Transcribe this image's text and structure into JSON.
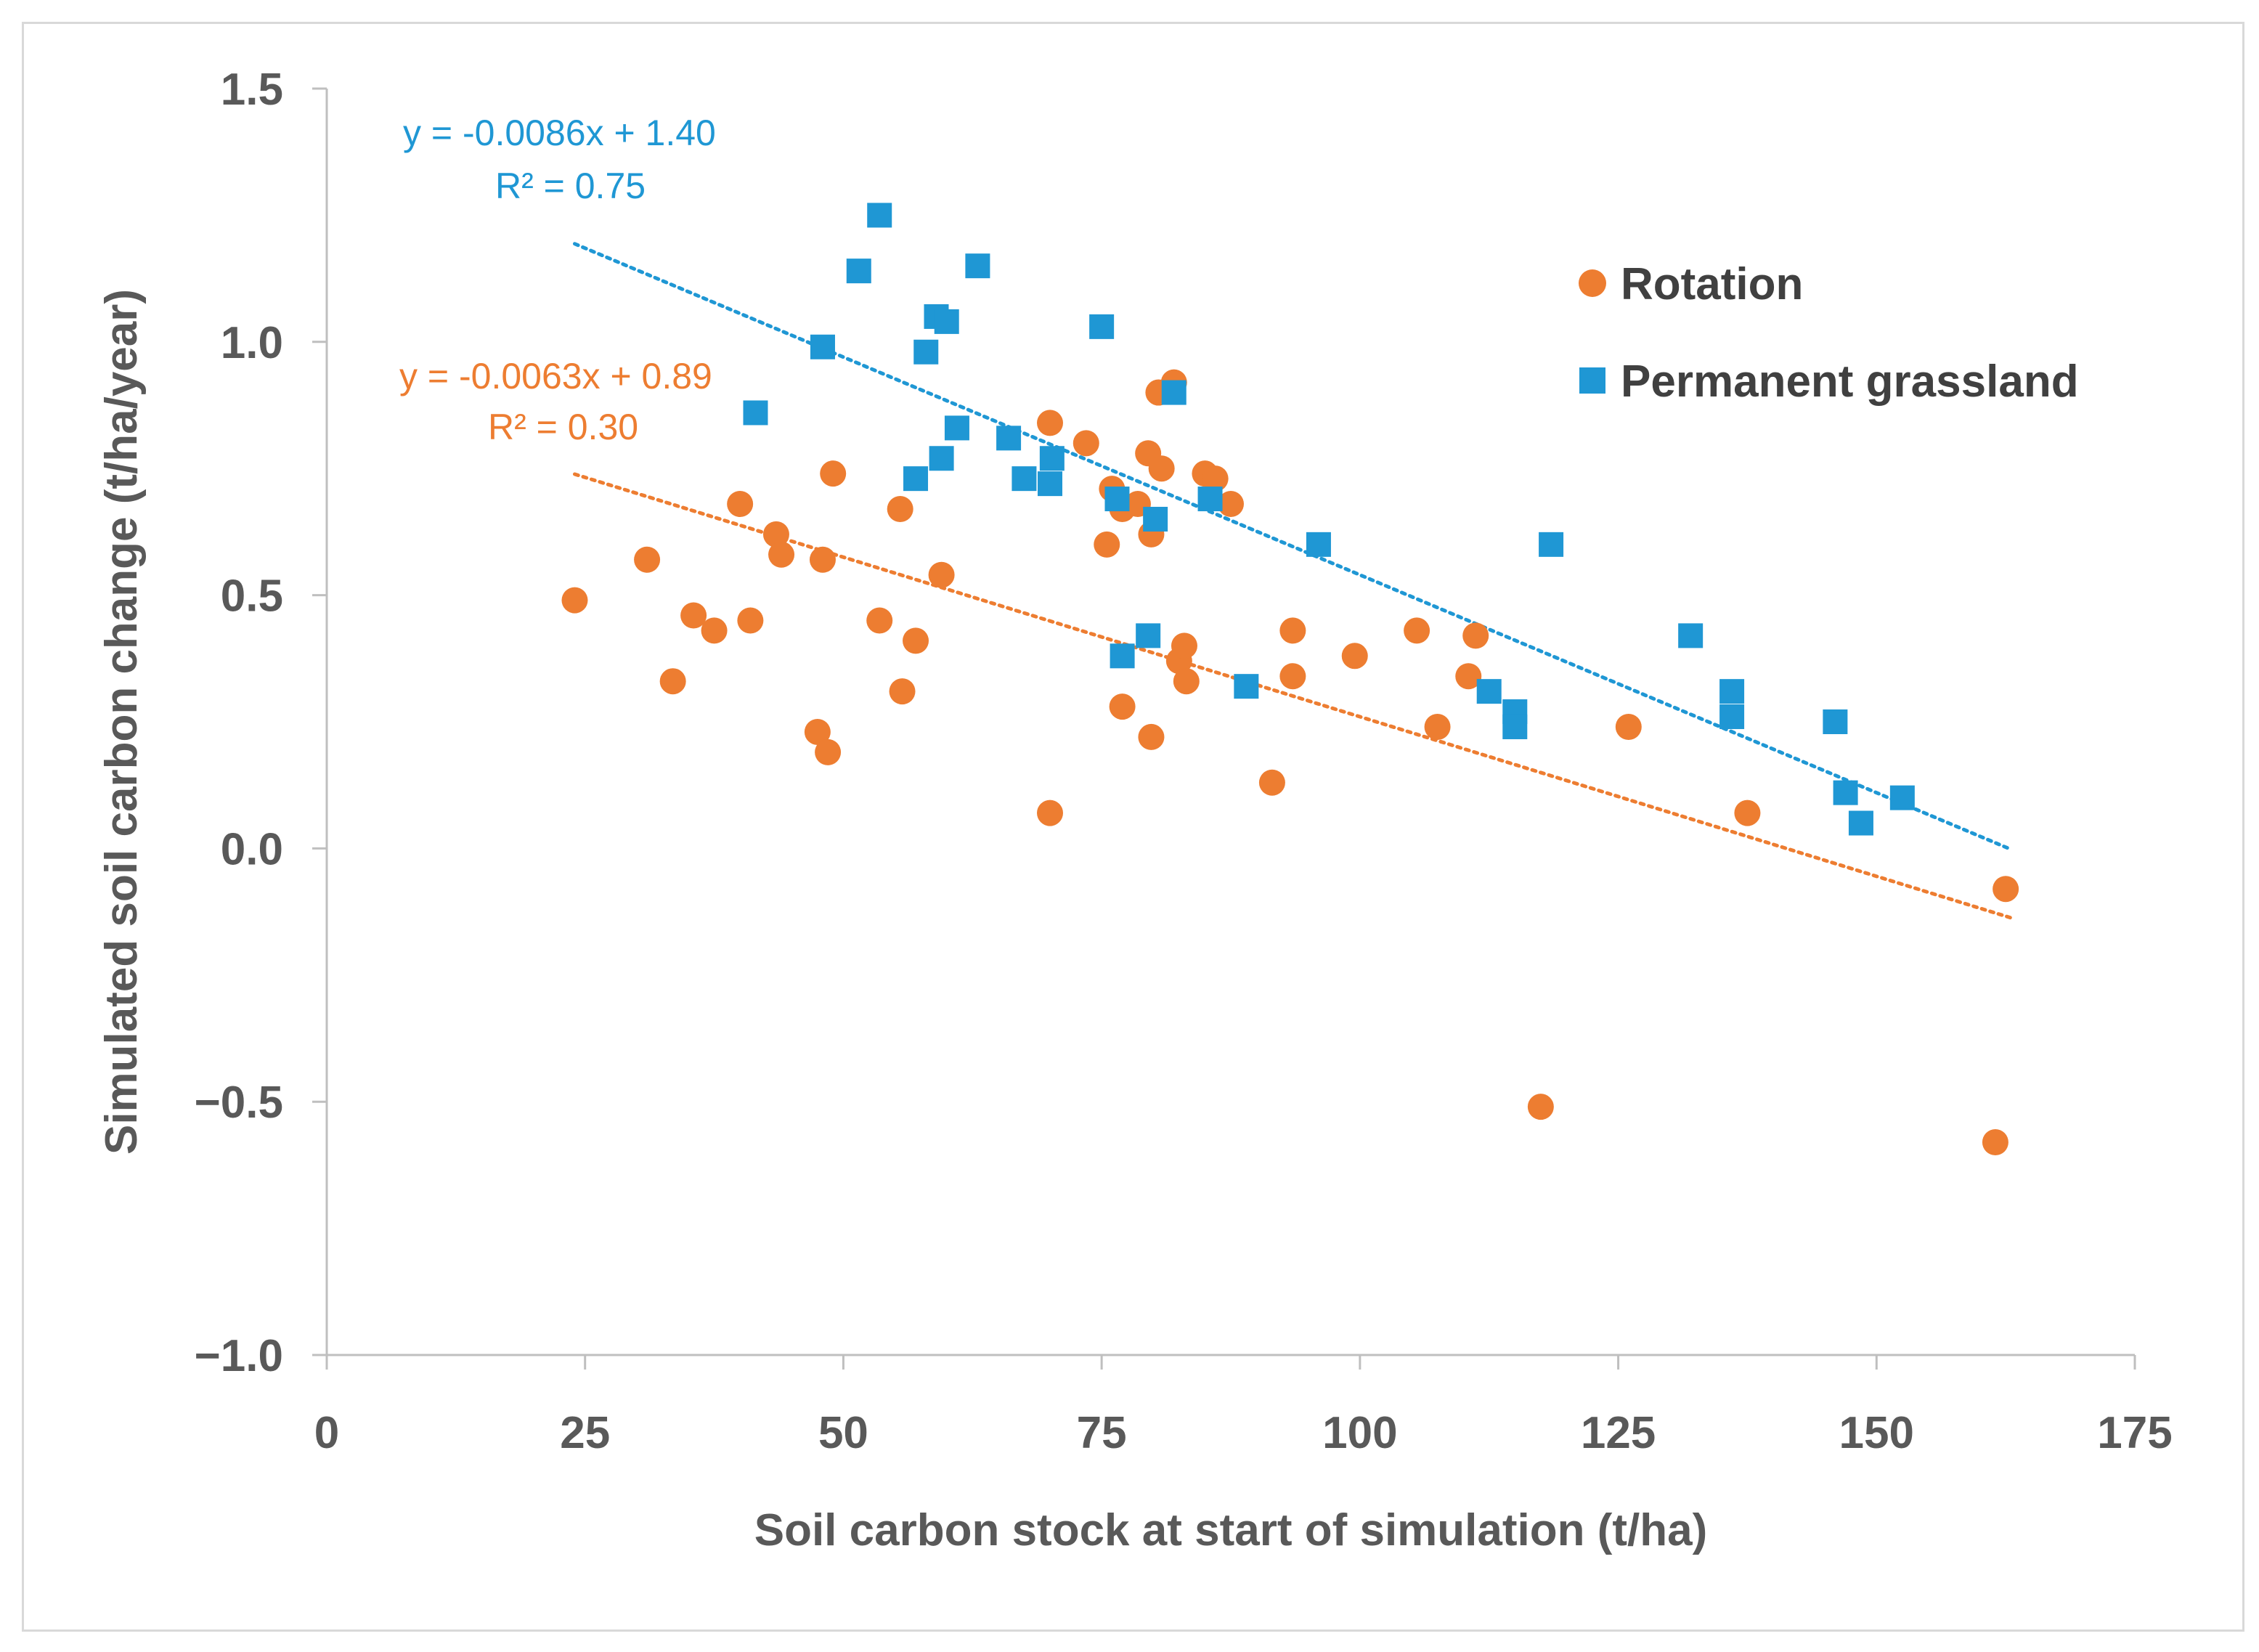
{
  "chart_data": {
    "type": "scatter",
    "title": "",
    "xlabel": "Soil carbon stock at start of simulation (t/ha)",
    "ylabel": "Simulated soil carbon change (t/ha/year)",
    "xlim": [
      0,
      175
    ],
    "ylim": [
      -1.0,
      1.5
    ],
    "x_ticks": [
      "0",
      "25",
      "50",
      "75",
      "100",
      "125",
      "150",
      "175"
    ],
    "y_ticks": [
      "−1.0",
      "−0.5",
      "0.0",
      "0.5",
      "1.0",
      "1.5"
    ],
    "grid": false,
    "legend_position": "top-right",
    "series": [
      {
        "name": "Rotation",
        "marker": "circle",
        "color": "#ED7D31",
        "trendline": {
          "equation": "y = -0.0063x + 0.89",
          "r2": "R² = 0.30",
          "slope": -0.0063,
          "intercept": 0.89,
          "x_range": [
            24,
            163
          ],
          "style": "dotted"
        },
        "points": [
          [
            24,
            0.49
          ],
          [
            31,
            0.57
          ],
          [
            33.5,
            0.33
          ],
          [
            35.5,
            0.46
          ],
          [
            37.5,
            0.43
          ],
          [
            40,
            0.68
          ],
          [
            41,
            0.45
          ],
          [
            43.5,
            0.62
          ],
          [
            44,
            0.58
          ],
          [
            47.5,
            0.23
          ],
          [
            48,
            0.57
          ],
          [
            48.5,
            0.19
          ],
          [
            49,
            0.74
          ],
          [
            53.5,
            0.45
          ],
          [
            55.5,
            0.67
          ],
          [
            55.7,
            0.31
          ],
          [
            57,
            0.41
          ],
          [
            59.5,
            0.54
          ],
          [
            70,
            0.84
          ],
          [
            70,
            0.07
          ],
          [
            73.5,
            0.8
          ],
          [
            75.5,
            0.6
          ],
          [
            76,
            0.71
          ],
          [
            77,
            0.67
          ],
          [
            77,
            0.28
          ],
          [
            78.5,
            0.68
          ],
          [
            79.5,
            0.78
          ],
          [
            79.8,
            0.62
          ],
          [
            79.8,
            0.22
          ],
          [
            80.5,
            0.9
          ],
          [
            80.8,
            0.75
          ],
          [
            82,
            0.92
          ],
          [
            82.5,
            0.37
          ],
          [
            83,
            0.4
          ],
          [
            83.2,
            0.33
          ],
          [
            85,
            0.74
          ],
          [
            86,
            0.73
          ],
          [
            87.5,
            0.68
          ],
          [
            91.5,
            0.13
          ],
          [
            93.5,
            0.43
          ],
          [
            93.5,
            0.34
          ],
          [
            99.5,
            0.38
          ],
          [
            105.5,
            0.43
          ],
          [
            107.5,
            0.24
          ],
          [
            110.5,
            0.34
          ],
          [
            111.2,
            0.42
          ],
          [
            117.5,
            -0.51
          ],
          [
            126,
            0.24
          ],
          [
            137.5,
            0.07
          ],
          [
            161.5,
            -0.58
          ],
          [
            162.5,
            -0.08
          ]
        ]
      },
      {
        "name": "Permanent grassland",
        "marker": "square",
        "color": "#1F97D4",
        "trendline": {
          "equation": "y = -0.0086x + 1.40",
          "r2": "R² = 0.75",
          "slope": -0.0086,
          "intercept": 1.4,
          "x_range": [
            24,
            163
          ],
          "style": "dotted"
        },
        "points": [
          [
            41.5,
            0.86
          ],
          [
            48,
            0.99
          ],
          [
            51.5,
            1.14
          ],
          [
            53.5,
            1.25
          ],
          [
            57,
            0.73
          ],
          [
            58,
            0.98
          ],
          [
            59,
            1.05
          ],
          [
            59.5,
            0.77
          ],
          [
            60,
            1.04
          ],
          [
            61,
            0.83
          ],
          [
            63,
            1.15
          ],
          [
            66,
            0.81
          ],
          [
            67.5,
            0.73
          ],
          [
            70,
            0.72
          ],
          [
            70.2,
            0.77
          ],
          [
            75,
            1.03
          ],
          [
            76.5,
            0.69
          ],
          [
            77,
            0.38
          ],
          [
            79.5,
            0.42
          ],
          [
            80.2,
            0.65
          ],
          [
            82,
            0.9
          ],
          [
            85.5,
            0.69
          ],
          [
            89,
            0.32
          ],
          [
            96,
            0.6
          ],
          [
            118.5,
            0.6
          ],
          [
            112.5,
            0.31
          ],
          [
            115,
            0.27
          ],
          [
            115,
            0.24
          ],
          [
            132,
            0.42
          ],
          [
            136,
            0.31
          ],
          [
            136,
            0.26
          ],
          [
            146,
            0.25
          ],
          [
            147,
            0.11
          ],
          [
            148.5,
            0.05
          ],
          [
            152.5,
            0.1
          ]
        ]
      }
    ]
  }
}
